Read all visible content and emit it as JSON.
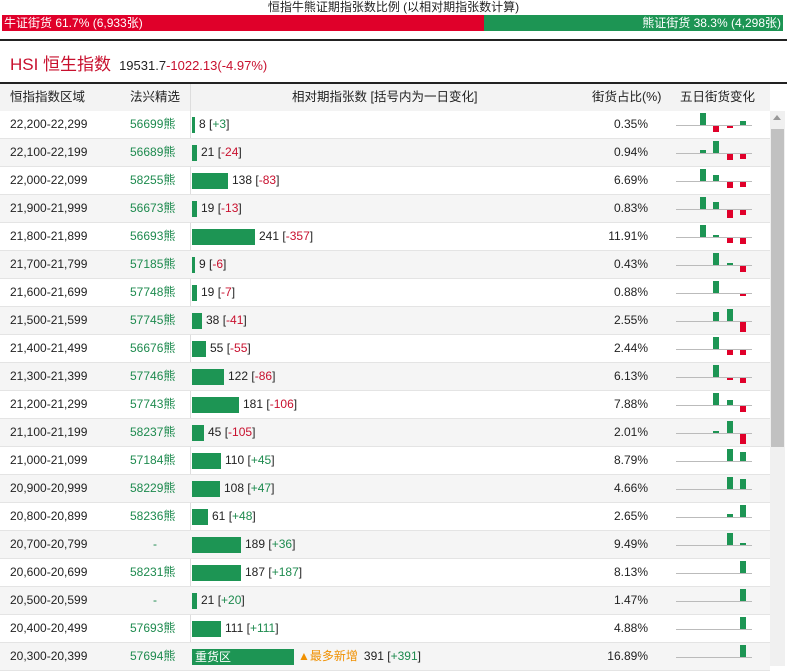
{
  "title": "恒指牛熊证期指张数比例 (以相对期指张数计算)",
  "ratio": {
    "bull_label": "牛证街货 61.7% (6,933张)",
    "bear_label": "熊证街货 38.3% (4,298张)",
    "bull_pct": 61.7,
    "bear_pct": 38.3
  },
  "index": {
    "name": "HSI 恒生指数",
    "price": "19531.7",
    "change": "-1022.13(-4.97%)"
  },
  "headers": {
    "range": "恒指指数区域",
    "pick": "法兴精选",
    "count": "相对期指张数 [括号内为一日变化]",
    "pct": "街货占比(%)",
    "five_day": "五日街货变化"
  },
  "colors": {
    "bull": "#e0002a",
    "bear": "#1d9554"
  },
  "rows": [
    {
      "range": "22,200-22,299",
      "code": "56699熊",
      "count": 8,
      "count_text": "8",
      "delta": "+3",
      "pct": "0.35%",
      "spark": [
        0,
        16,
        -8,
        -2,
        6
      ]
    },
    {
      "range": "22,100-22,199",
      "code": "56689熊",
      "count": 21,
      "count_text": "21",
      "delta": "-24",
      "pct": "0.94%",
      "spark": [
        0,
        4,
        16,
        -8,
        -6
      ]
    },
    {
      "range": "22,000-22,099",
      "code": "58255熊",
      "count": 138,
      "count_text": "138",
      "delta": "-83",
      "pct": "6.69%",
      "spark": [
        0,
        16,
        8,
        -8,
        -6
      ]
    },
    {
      "range": "21,900-21,999",
      "code": "56673熊",
      "count": 19,
      "count_text": "19",
      "delta": "-13",
      "pct": "0.83%",
      "spark": [
        0,
        16,
        10,
        -10,
        -6
      ]
    },
    {
      "range": "21,800-21,899",
      "code": "56693熊",
      "count": 241,
      "count_text": "241",
      "delta": "-357",
      "pct": "11.91%",
      "spark": [
        0,
        16,
        3,
        -6,
        -8
      ]
    },
    {
      "range": "21,700-21,799",
      "code": "57185熊",
      "count": 9,
      "count_text": "9",
      "delta": "-6",
      "pct": "0.43%",
      "spark": [
        0,
        0,
        16,
        2,
        -8
      ]
    },
    {
      "range": "21,600-21,699",
      "code": "57748熊",
      "count": 19,
      "count_text": "19",
      "delta": "-7",
      "pct": "0.88%",
      "spark": [
        0,
        0,
        16,
        0,
        -3
      ]
    },
    {
      "range": "21,500-21,599",
      "code": "57745熊",
      "count": 38,
      "count_text": "38",
      "delta": "-41",
      "pct": "2.55%",
      "spark": [
        0,
        0,
        12,
        16,
        -13
      ]
    },
    {
      "range": "21,400-21,499",
      "code": "56676熊",
      "count": 55,
      "count_text": "55",
      "delta": "-55",
      "pct": "2.44%",
      "spark": [
        0,
        0,
        16,
        -6,
        -6
      ]
    },
    {
      "range": "21,300-21,399",
      "code": "57746熊",
      "count": 122,
      "count_text": "122",
      "delta": "-86",
      "pct": "6.13%",
      "spark": [
        0,
        0,
        16,
        -1,
        -6
      ]
    },
    {
      "range": "21,200-21,299",
      "code": "57743熊",
      "count": 181,
      "count_text": "181",
      "delta": "-106",
      "pct": "7.88%",
      "spark": [
        0,
        0,
        16,
        7,
        -8
      ]
    },
    {
      "range": "21,100-21,199",
      "code": "58237熊",
      "count": 45,
      "count_text": "45",
      "delta": "-105",
      "pct": "2.01%",
      "spark": [
        0,
        0,
        3,
        16,
        -13
      ]
    },
    {
      "range": "21,000-21,099",
      "code": "57184熊",
      "count": 110,
      "count_text": "110",
      "delta": "+45",
      "pct": "8.79%",
      "spark": [
        0,
        0,
        0,
        16,
        12
      ]
    },
    {
      "range": "20,900-20,999",
      "code": "58229熊",
      "count": 108,
      "count_text": "108",
      "delta": "+47",
      "pct": "4.66%",
      "spark": [
        0,
        0,
        0,
        16,
        13
      ]
    },
    {
      "range": "20,800-20,899",
      "code": "58236熊",
      "count": 61,
      "count_text": "61",
      "delta": "+48",
      "pct": "2.65%",
      "spark": [
        0,
        0,
        0,
        4,
        16
      ]
    },
    {
      "range": "20,700-20,799",
      "code": "-",
      "count": 189,
      "count_text": "189",
      "delta": "+36",
      "pct": "9.49%",
      "spark": [
        0,
        0,
        0,
        16,
        3
      ]
    },
    {
      "range": "20,600-20,699",
      "code": "58231熊",
      "count": 187,
      "count_text": "187",
      "delta": "+187",
      "pct": "8.13%",
      "spark": [
        0,
        0,
        0,
        0,
        16
      ]
    },
    {
      "range": "20,500-20,599",
      "code": "-",
      "count": 21,
      "count_text": "21",
      "delta": "+20",
      "pct": "1.47%",
      "spark": [
        0,
        0,
        0,
        0,
        16
      ]
    },
    {
      "range": "20,400-20,499",
      "code": "57693熊",
      "count": 111,
      "count_text": "111",
      "delta": "+111",
      "pct": "4.88%",
      "spark": [
        0,
        0,
        0,
        0,
        16
      ]
    },
    {
      "range": "20,300-20,399",
      "code": "57694熊",
      "count": 391,
      "count_text": "391",
      "delta": "+391",
      "pct": "16.89%",
      "bar_label": "重货区",
      "tag": "▲最多新增",
      "spark": [
        0,
        0,
        0,
        0,
        16
      ]
    }
  ]
}
